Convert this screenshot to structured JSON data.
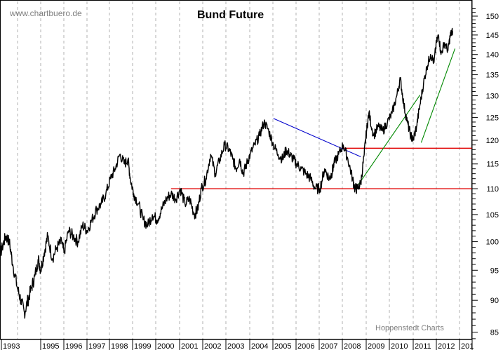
{
  "chart_data": {
    "type": "line",
    "title": "Bund Future",
    "watermark": "www.chartbuero.de",
    "credit": "Hoppenstedt Charts",
    "xlabel": "",
    "ylabel": "",
    "y_scale": "log",
    "ylim": [
      84,
      152
    ],
    "y_ticks": [
      85,
      90,
      95,
      100,
      105,
      110,
      115,
      120,
      125,
      130,
      135,
      140,
      145,
      150
    ],
    "x_tick_labels": [
      "1993",
      "1995",
      "1996",
      "1997",
      "1998",
      "1999",
      "2000",
      "2001",
      "2002",
      "2003",
      "2004",
      "2005",
      "2006",
      "2007",
      "2008",
      "2009",
      "2010",
      "2011",
      "2012",
      "201"
    ],
    "x_tick_positions": [
      2,
      58,
      91,
      124,
      156,
      189,
      222,
      256,
      289,
      322,
      356,
      389,
      422,
      455,
      488,
      522,
      555,
      589,
      622,
      655
    ],
    "grid": "vertical dashed",
    "legend": null,
    "series": [
      {
        "name": "Bund Future",
        "color": "#000000",
        "x": [
          1993.0,
          1993.1,
          1993.2,
          1993.35,
          1993.5,
          1993.65,
          1993.8,
          1994.0,
          1994.15,
          1994.3,
          1994.45,
          1994.6,
          1994.75,
          1994.9,
          1995.0,
          1995.15,
          1995.3,
          1995.5,
          1995.7,
          1995.9,
          1996.0,
          1996.2,
          1996.4,
          1996.6,
          1996.8,
          1997.0,
          1997.2,
          1997.4,
          1997.6,
          1997.8,
          1998.0,
          1998.2,
          1998.4,
          1998.6,
          1998.75,
          1998.85,
          1999.0,
          1999.2,
          1999.4,
          1999.6,
          1999.8,
          2000.0,
          2000.2,
          2000.4,
          2000.6,
          2000.8,
          2001.0,
          2001.2,
          2001.4,
          2001.6,
          2001.75,
          2001.9,
          2002.1,
          2002.3,
          2002.5,
          2002.7,
          2002.9,
          2003.1,
          2003.25,
          2003.4,
          2003.55,
          2003.7,
          2003.85,
          2004.0,
          2004.2,
          2004.4,
          2004.6,
          2004.8,
          2005.0,
          2005.2,
          2005.4,
          2005.55,
          2005.7,
          2005.85,
          2006.0,
          2006.2,
          2006.4,
          2006.6,
          2006.8,
          2007.0,
          2007.2,
          2007.4,
          2007.5,
          2007.6,
          2007.8,
          2008.0,
          2008.2,
          2008.4,
          2008.5,
          2008.6,
          2008.75,
          2008.9,
          2009.0,
          2009.1,
          2009.3,
          2009.5,
          2009.7,
          2009.9,
          2010.1,
          2010.3,
          2010.45,
          2010.6,
          2010.75,
          2010.9,
          2011.0,
          2011.15,
          2011.3,
          2011.45,
          2011.6,
          2011.75,
          2011.9,
          2012.0,
          2012.1,
          2012.2,
          2012.35,
          2012.5,
          2012.6,
          2012.7
        ],
        "values": [
          96,
          95,
          97,
          99,
          101,
          100,
          96,
          92,
          90,
          88,
          90,
          92,
          94,
          97,
          95,
          98,
          101,
          97,
          99,
          100,
          98,
          102,
          101,
          100,
          103,
          102,
          104,
          106,
          107,
          109,
          112,
          114,
          117,
          115,
          116,
          112,
          109,
          107,
          104,
          103,
          105,
          104,
          106,
          108,
          109,
          108,
          110,
          107,
          108,
          105,
          106,
          110,
          112,
          117,
          113,
          116,
          119,
          118,
          116,
          114,
          116,
          113,
          115,
          117,
          119,
          121,
          124,
          122,
          119,
          117,
          116,
          118,
          117,
          116,
          115,
          114,
          113,
          112,
          110,
          110,
          114,
          112,
          113,
          115,
          117,
          119,
          116,
          112,
          110,
          110,
          111,
          117,
          122,
          126,
          121,
          123,
          122,
          124,
          126,
          130,
          134,
          128,
          124,
          121,
          120,
          123,
          128,
          133,
          137,
          140,
          138,
          143,
          145,
          140,
          143,
          141,
          145,
          146
        ]
      }
    ],
    "annotations": [
      {
        "type": "hline",
        "color": "#e00000",
        "y": 110,
        "x_start": 2000.6,
        "x_end": 2013.2,
        "label": "support 110"
      },
      {
        "type": "hline",
        "color": "#e00000",
        "y": 118.3,
        "x_start": 2008.0,
        "x_end": 2013.2,
        "label": "support 118"
      },
      {
        "type": "trendline",
        "color": "#0000cc",
        "from": [
          2005.0,
          124.8
        ],
        "to": [
          2008.75,
          116.5
        ],
        "label": "downtrend"
      },
      {
        "type": "trendline",
        "color": "#008800",
        "from": [
          2008.5,
          109.8
        ],
        "to": [
          2011.3,
          130.2
        ],
        "label": "uptrend 1"
      },
      {
        "type": "trendline",
        "color": "#008800",
        "from": [
          2011.35,
          119.5
        ],
        "to": [
          2012.8,
          141.5
        ],
        "label": "uptrend 2"
      }
    ]
  }
}
